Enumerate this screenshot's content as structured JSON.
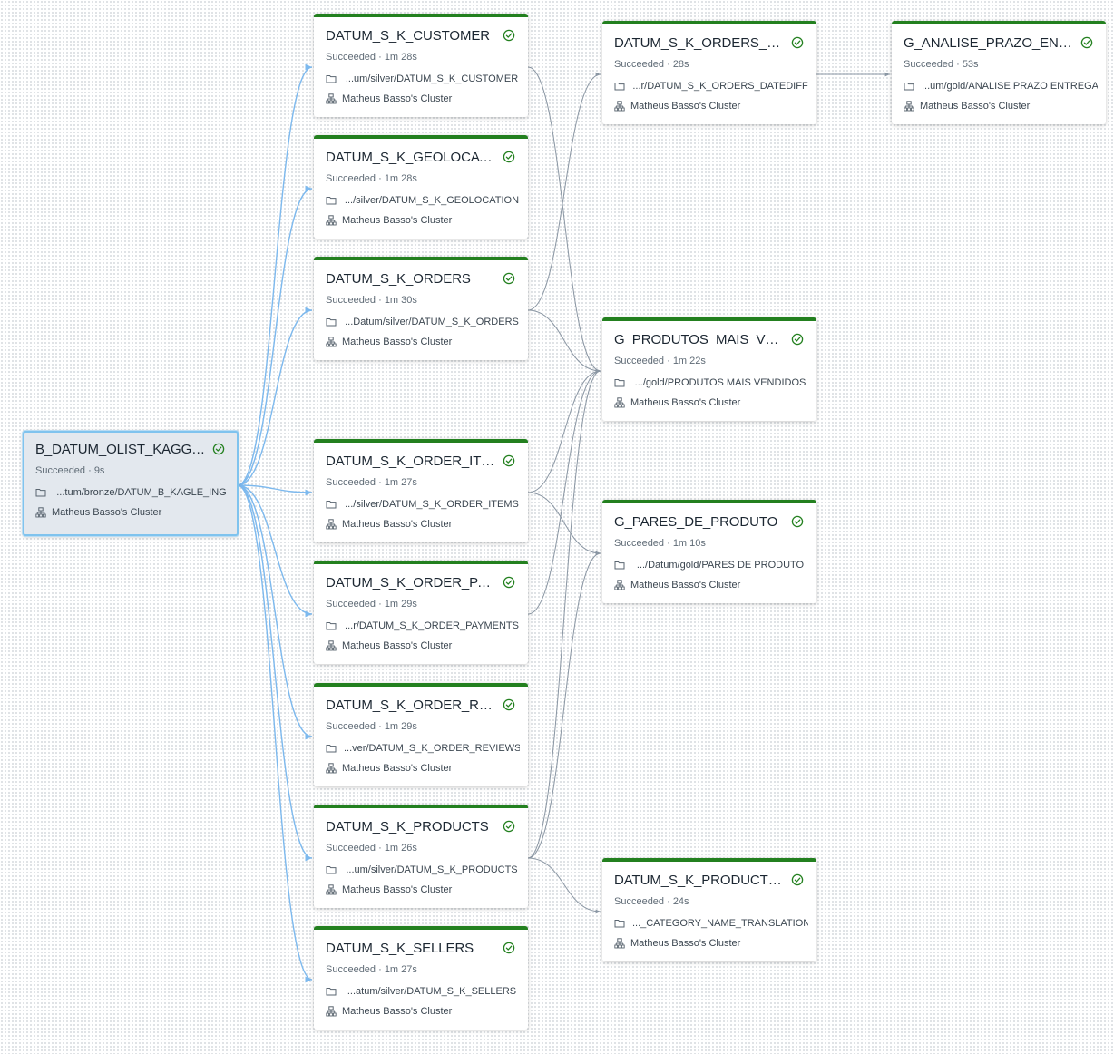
{
  "colors": {
    "success_bar": "#23801f",
    "edge_upstream": "#7db9ee",
    "edge_downstream": "#8a96a3",
    "selected_border": "#7fc3ee",
    "selected_fill": "#e3e8ee"
  },
  "icons": {
    "status": "check-circle-icon",
    "path": "folder-icon",
    "cluster": "cluster-icon"
  },
  "nodes": [
    {
      "id": "b_olist",
      "title": "B_DATUM_OLIST_KAGGL...",
      "status": "Succeeded · 9s",
      "path": "...tum/bronze/DATUM_B_KAGLE_ING",
      "cluster": "Matheus Basso's Cluster",
      "selected": true
    },
    {
      "id": "customer",
      "title": "DATUM_S_K_CUSTOMER",
      "status": "Succeeded · 1m 28s",
      "path": "...um/silver/DATUM_S_K_CUSTOMER",
      "cluster": "Matheus Basso's Cluster"
    },
    {
      "id": "geolocation",
      "title": "DATUM_S_K_GEOLOCATI...",
      "status": "Succeeded · 1m 28s",
      "path": ".../silver/DATUM_S_K_GEOLOCATION",
      "cluster": "Matheus Basso's Cluster"
    },
    {
      "id": "orders",
      "title": "DATUM_S_K_ORDERS",
      "status": "Succeeded · 1m 30s",
      "path": "...Datum/silver/DATUM_S_K_ORDERS",
      "cluster": "Matheus Basso's Cluster"
    },
    {
      "id": "order_items",
      "title": "DATUM_S_K_ORDER_ITE...",
      "status": "Succeeded · 1m 27s",
      "path": ".../silver/DATUM_S_K_ORDER_ITEMS",
      "cluster": "Matheus Basso's Cluster"
    },
    {
      "id": "order_pay",
      "title": "DATUM_S_K_ORDER_PAY...",
      "status": "Succeeded · 1m 29s",
      "path": "...r/DATUM_S_K_ORDER_PAYMENTS",
      "cluster": "Matheus Basso's Cluster"
    },
    {
      "id": "order_rev",
      "title": "DATUM_S_K_ORDER_REV...",
      "status": "Succeeded · 1m 29s",
      "path": "...ver/DATUM_S_K_ORDER_REVIEWS",
      "cluster": "Matheus Basso's Cluster"
    },
    {
      "id": "products",
      "title": "DATUM_S_K_PRODUCTS",
      "status": "Succeeded · 1m 26s",
      "path": "...um/silver/DATUM_S_K_PRODUCTS",
      "cluster": "Matheus Basso's Cluster"
    },
    {
      "id": "sellers",
      "title": "DATUM_S_K_SELLERS",
      "status": "Succeeded · 1m 27s",
      "path": "...atum/silver/DATUM_S_K_SELLERS",
      "cluster": "Matheus Basso's Cluster"
    },
    {
      "id": "orders_da",
      "title": "DATUM_S_K_ORDERS_DA...",
      "status": "Succeeded · 28s",
      "path": "...r/DATUM_S_K_ORDERS_DATEDIFF",
      "cluster": "Matheus Basso's Cluster"
    },
    {
      "id": "produtos",
      "title": "G_PRODUTOS_MAIS_VEN...",
      "status": "Succeeded · 1m 22s",
      "path": ".../gold/PRODUTOS MAIS VENDIDOS",
      "cluster": "Matheus Basso's Cluster"
    },
    {
      "id": "pares",
      "title": "G_PARES_DE_PRODUTO",
      "status": "Succeeded · 1m 10s",
      "path": ".../Datum/gold/PARES DE PRODUTO",
      "cluster": "Matheus Basso's Cluster"
    },
    {
      "id": "product_c",
      "title": "DATUM_S_K_PRODUCT_C...",
      "status": "Succeeded · 24s",
      "path": "..._CATEGORY_NAME_TRANSLATION",
      "cluster": "Matheus Basso's Cluster"
    },
    {
      "id": "analise",
      "title": "G_ANALISE_PRAZO_ENTR...",
      "status": "Succeeded · 53s",
      "path": "...um/gold/ANALISE PRAZO ENTREGA",
      "cluster": "Matheus Basso's Cluster"
    }
  ],
  "edges": [
    [
      "b_olist",
      "customer"
    ],
    [
      "b_olist",
      "geolocation"
    ],
    [
      "b_olist",
      "orders"
    ],
    [
      "b_olist",
      "order_items"
    ],
    [
      "b_olist",
      "order_pay"
    ],
    [
      "b_olist",
      "order_rev"
    ],
    [
      "b_olist",
      "products"
    ],
    [
      "b_olist",
      "sellers"
    ],
    [
      "orders",
      "orders_da"
    ],
    [
      "customer",
      "produtos"
    ],
    [
      "orders",
      "produtos"
    ],
    [
      "order_items",
      "produtos"
    ],
    [
      "products",
      "produtos"
    ],
    [
      "order_pay",
      "produtos"
    ],
    [
      "order_items",
      "pares"
    ],
    [
      "products",
      "pares"
    ],
    [
      "products",
      "product_c"
    ],
    [
      "orders_da",
      "analise"
    ]
  ]
}
